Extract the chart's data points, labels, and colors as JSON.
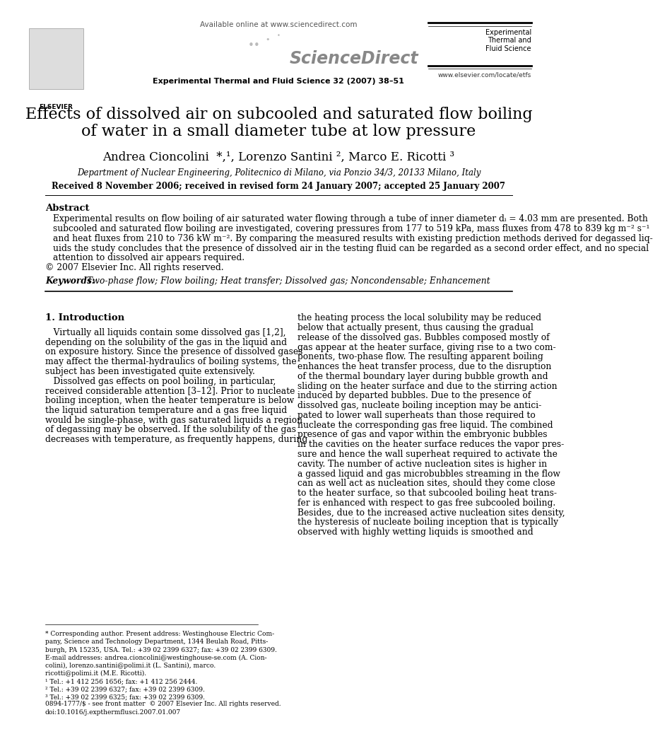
{
  "page_width": 9.92,
  "page_height": 13.23,
  "bg_color": "#ffffff",
  "header_online": "Available online at www.sciencedirect.com",
  "journal_name": "Experimental Thermal and Fluid Science 32 (2007) 38–51",
  "website": "www.elsevier.com/locate/etfs",
  "title_line1": "Effects of dissolved air on subcooled and saturated flow boiling",
  "title_line2": "of water in a small diameter tube at low pressure",
  "authors": "Andrea Cioncolini  *,¹, Lorenzo Santini ², Marco E. Ricotti ³",
  "affiliation": "Department of Nuclear Engineering, Politecnico di Milano, via Ponzio 34/3, 20133 Milano, Italy",
  "received": "Received 8 November 2006; received in revised form 24 January 2007; accepted 25 January 2007",
  "abstract_title": "Abstract",
  "abstract_line1": "Experimental results on flow boiling of air saturated water flowing through a tube of inner diameter dᵢ = 4.03 mm are presented. Both",
  "abstract_line2": "subcooled and saturated flow boiling are investigated, covering pressures from 177 to 519 kPa, mass fluxes from 478 to 839 kg m⁻² s⁻¹",
  "abstract_line3": "and heat fluxes from 210 to 736 kW m⁻². By comparing the measured results with existing prediction methods derived for degassed liq-",
  "abstract_line4": "uids the study concludes that the presence of dissolved air in the testing fluid can be regarded as a second order effect, and no special",
  "abstract_line5": "attention to dissolved air appears required.",
  "copyright": "© 2007 Elsevier Inc. All rights reserved.",
  "keywords_label": "Keywords:",
  "keywords": "  Two-phase flow; Flow boiling; Heat transfer; Dissolved gas; Noncondensable; Enhancement",
  "section1_title": "1. Introduction",
  "col1_lines": [
    "   Virtually all liquids contain some dissolved gas [1,2],",
    "depending on the solubility of the gas in the liquid and",
    "on exposure history. Since the presence of dissolved gases",
    "may affect the thermal-hydraulics of boiling systems, the",
    "subject has been investigated quite extensively.",
    "   Dissolved gas effects on pool boiling, in particular,",
    "received considerable attention [3–12]. Prior to nucleate",
    "boiling inception, when the heater temperature is below",
    "the liquid saturation temperature and a gas free liquid",
    "would be single-phase, with gas saturated liquids a region",
    "of degassing may be observed. If the solubility of the gas",
    "decreases with temperature, as frequently happens, during"
  ],
  "col2_lines": [
    "the heating process the local solubility may be reduced",
    "below that actually present, thus causing the gradual",
    "release of the dissolved gas. Bubbles composed mostly of",
    "gas appear at the heater surface, giving rise to a two com-",
    "ponents, two-phase flow. The resulting apparent boiling",
    "enhances the heat transfer process, due to the disruption",
    "of the thermal boundary layer during bubble growth and",
    "sliding on the heater surface and due to the stirring action",
    "induced by departed bubbles. Due to the presence of",
    "dissolved gas, nucleate boiling inception may be antici-",
    "pated to lower wall superheats than those required to",
    "nucleate the corresponding gas free liquid. The combined",
    "presence of gas and vapor within the embryonic bubbles",
    "in the cavities on the heater surface reduces the vapor pres-",
    "sure and hence the wall superheat required to activate the",
    "cavity. The number of active nucleation sites is higher in",
    "a gassed liquid and gas microbubbles streaming in the flow",
    "can as well act as nucleation sites, should they come close",
    "to the heater surface, so that subcooled boiling heat trans-",
    "fer is enhanced with respect to gas free subcooled boiling.",
    "Besides, due to the increased active nucleation sites density,",
    "the hysteresis of nucleate boiling inception that is typically",
    "observed with highly wetting liquids is smoothed and"
  ],
  "footnote_line": "* Corresponding author. Present address: Westinghouse Electric Com-",
  "footnote_line2": "pany, Science and Technology Department, 1344 Beulah Road, Pitts-",
  "footnote_line3": "burgh, PA 15235, USA. Tel.: +39 02 2399 6327; fax: +39 02 2399 6309.",
  "footnote_email1": "E-mail addresses: andrea.cioncolini@westinghouse-se.com (A. Cion-",
  "footnote_email2": "colini), lorenzo.santini@polimi.it (L. Santini), marco.",
  "footnote_email3": "ricotti@polimi.it (M.E. Ricotti).",
  "footnote1": "¹ Tel.: +1 412 256 1656; fax: +1 412 256 2444.",
  "footnote2": "² Tel.: +39 02 2399 6327; fax: +39 02 2399 6309.",
  "footnote3": "³ Tel.: +39 02 2399 6325; fax: +39 02 2399 6309.",
  "bottom_bar": "0894-1777/$ - see front matter  © 2007 Elsevier Inc. All rights reserved.",
  "bottom_doi": "doi:10.1016/j.expthermflusci.2007.01.007"
}
